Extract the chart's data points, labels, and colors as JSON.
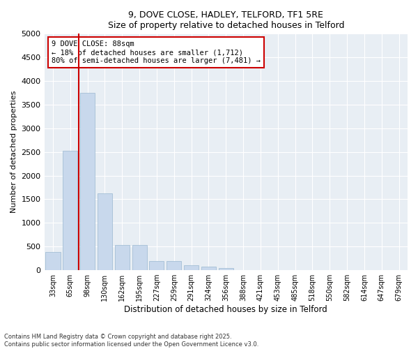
{
  "title1": "9, DOVE CLOSE, HADLEY, TELFORD, TF1 5RE",
  "title2": "Size of property relative to detached houses in Telford",
  "xlabel": "Distribution of detached houses by size in Telford",
  "ylabel": "Number of detached properties",
  "categories": [
    "33sqm",
    "65sqm",
    "98sqm",
    "130sqm",
    "162sqm",
    "195sqm",
    "227sqm",
    "259sqm",
    "291sqm",
    "324sqm",
    "356sqm",
    "388sqm",
    "421sqm",
    "453sqm",
    "485sqm",
    "518sqm",
    "550sqm",
    "582sqm",
    "614sqm",
    "647sqm",
    "679sqm"
  ],
  "values": [
    380,
    2520,
    3750,
    1620,
    530,
    530,
    200,
    200,
    110,
    80,
    50,
    0,
    0,
    0,
    0,
    0,
    0,
    0,
    0,
    0,
    0
  ],
  "bar_color": "#c8d8ec",
  "bar_edgecolor": "#9ab8d0",
  "vline_color": "#cc0000",
  "annotation_text": "9 DOVE CLOSE: 88sqm\n← 18% of detached houses are smaller (1,712)\n80% of semi-detached houses are larger (7,481) →",
  "annotation_box_color": "#cc0000",
  "ylim": [
    0,
    5000
  ],
  "yticks": [
    0,
    500,
    1000,
    1500,
    2000,
    2500,
    3000,
    3500,
    4000,
    4500,
    5000
  ],
  "footer": "Contains HM Land Registry data © Crown copyright and database right 2025.\nContains public sector information licensed under the Open Government Licence v3.0.",
  "bg_color": "#ffffff",
  "plot_bg_color": "#e8eef4",
  "grid_color": "#ffffff"
}
